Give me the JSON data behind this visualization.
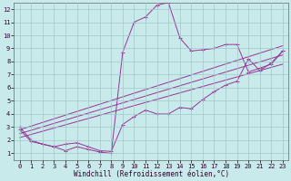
{
  "xlabel": "Windchill (Refroidissement éolien,°C)",
  "bg_color": "#c8eaea",
  "grid_color": "#a0c8c8",
  "line_color": "#993399",
  "xlim": [
    -0.5,
    23.5
  ],
  "ylim": [
    0.5,
    12.5
  ],
  "xticks": [
    0,
    1,
    2,
    3,
    4,
    5,
    6,
    7,
    8,
    9,
    10,
    11,
    12,
    13,
    14,
    15,
    16,
    17,
    18,
    19,
    20,
    21,
    22,
    23
  ],
  "yticks": [
    1,
    2,
    3,
    4,
    5,
    6,
    7,
    8,
    9,
    10,
    11,
    12
  ],
  "series1_x": [
    0,
    1,
    2,
    3,
    4,
    5,
    6,
    7,
    8,
    9,
    10,
    11,
    12,
    13,
    14,
    15,
    16,
    17,
    18,
    19,
    20,
    21,
    22,
    23
  ],
  "series1_y": [
    3.0,
    2.0,
    1.7,
    1.5,
    1.2,
    1.5,
    1.3,
    1.1,
    1.0,
    8.7,
    11.0,
    11.4,
    12.3,
    12.5,
    9.8,
    8.8,
    8.9,
    9.0,
    9.3,
    9.3,
    7.2,
    7.5,
    7.8,
    8.8
  ],
  "series2_x": [
    0,
    1,
    2,
    3,
    4,
    5,
    6,
    7,
    8,
    9,
    10,
    11,
    12,
    13,
    14,
    15,
    16,
    17,
    18,
    19,
    20,
    21,
    22,
    23
  ],
  "series2_y": [
    2.8,
    1.9,
    1.7,
    1.5,
    1.7,
    1.8,
    1.5,
    1.2,
    1.15,
    3.2,
    3.8,
    4.3,
    4.0,
    4.0,
    4.5,
    4.4,
    5.1,
    5.7,
    6.2,
    6.5,
    8.2,
    7.3,
    7.9,
    8.8
  ],
  "series3_x": [
    0,
    23
  ],
  "series3_y": [
    2.8,
    9.2
  ],
  "series4_x": [
    0,
    23
  ],
  "series4_y": [
    2.5,
    8.5
  ],
  "series5_x": [
    0,
    23
  ],
  "series5_y": [
    2.2,
    7.8
  ],
  "marker_series": [
    0,
    9,
    10,
    11,
    12,
    13,
    14,
    15,
    16,
    17,
    18,
    19,
    20,
    21,
    22,
    23
  ],
  "tick_fontsize": 5,
  "label_fontsize": 5.5
}
